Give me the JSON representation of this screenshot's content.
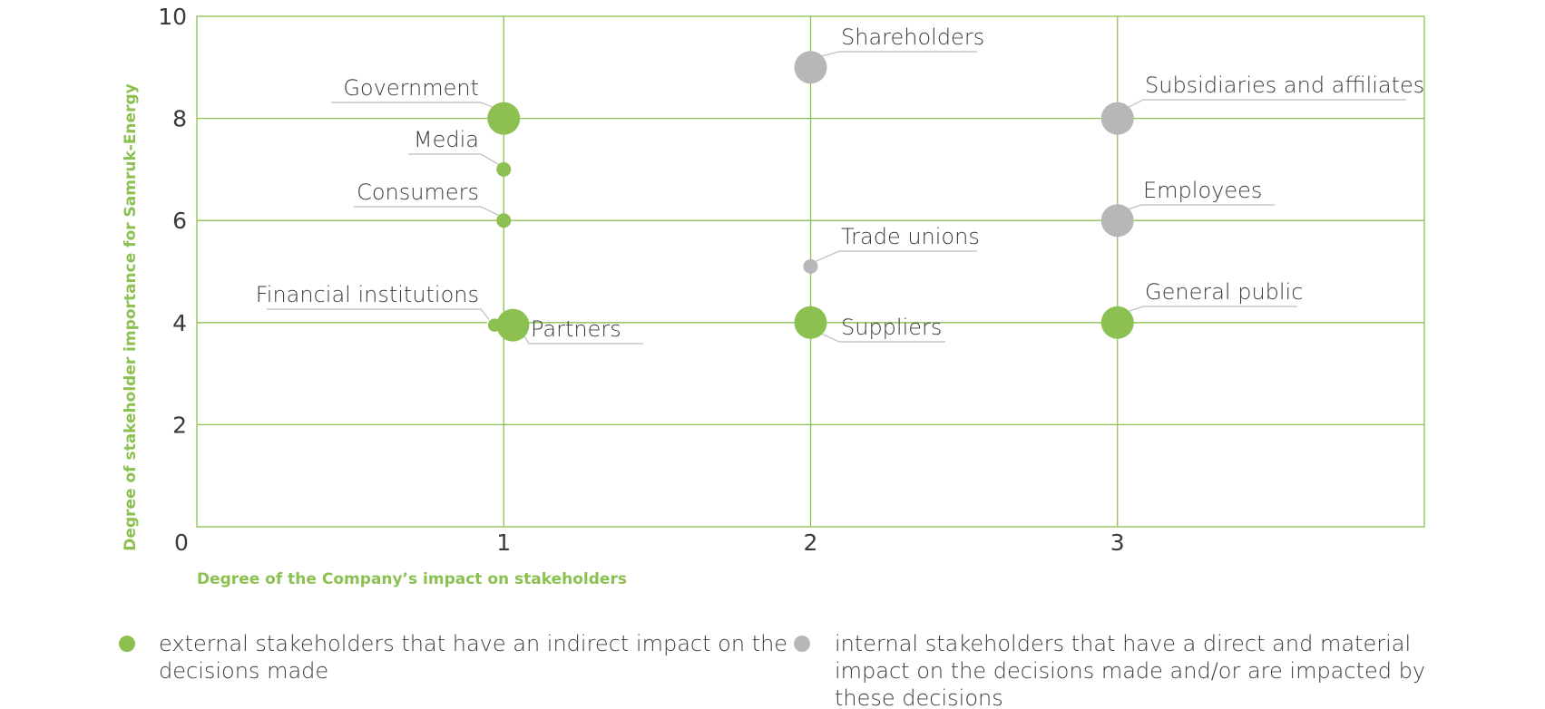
{
  "chart_data": {
    "type": "scatter",
    "xlabel": "Degree of the Company’s impact on stakeholders",
    "ylabel": "Degree of stakeholder importance for Samruk-Energy",
    "xlim": [
      0,
      4
    ],
    "ylim": [
      0,
      10
    ],
    "x_ticks": [
      "0",
      "1",
      "2",
      "3"
    ],
    "y_ticks": [
      "10",
      "8",
      "6",
      "4",
      "2"
    ],
    "grid": true,
    "colors": {
      "external": "#8cc152",
      "internal": "#b7b7b7",
      "grid": "#8cc152",
      "text": "#3a3a3a",
      "leader": "#bdbdbd"
    },
    "points": [
      {
        "label": "Shareholders",
        "x": 2,
        "y": 9.0,
        "group": "internal",
        "size": "large"
      },
      {
        "label": "Subsidiaries and affiliates",
        "x": 3,
        "y": 8.0,
        "group": "internal",
        "size": "large"
      },
      {
        "label": "Employees",
        "x": 3,
        "y": 6.0,
        "group": "internal",
        "size": "large"
      },
      {
        "label": "Trade unions",
        "x": 2,
        "y": 5.1,
        "group": "internal",
        "size": "small"
      },
      {
        "label": "Government",
        "x": 1,
        "y": 8.0,
        "group": "external",
        "size": "large"
      },
      {
        "label": "Media",
        "x": 1,
        "y": 7.0,
        "group": "external",
        "size": "small"
      },
      {
        "label": "Consumers",
        "x": 1,
        "y": 6.0,
        "group": "external",
        "size": "small"
      },
      {
        "label": "Financial institutions",
        "x": 0.97,
        "y": 3.95,
        "group": "external",
        "size": "small"
      },
      {
        "label": "Partners",
        "x": 1.03,
        "y": 3.95,
        "group": "external",
        "size": "large"
      },
      {
        "label": "Suppliers",
        "x": 2,
        "y": 4.0,
        "group": "external",
        "size": "large"
      },
      {
        "label": "General public",
        "x": 3,
        "y": 4.0,
        "group": "external",
        "size": "large"
      }
    ],
    "legend": [
      {
        "group": "external",
        "text_lines": [
          "external stakeholders that have an indirect impact on the",
          "decisions made"
        ]
      },
      {
        "group": "internal",
        "text_lines": [
          "internal stakeholders that have a direct and material",
          "impact on the decisions made and/or are impacted by",
          "these decisions"
        ]
      }
    ]
  }
}
